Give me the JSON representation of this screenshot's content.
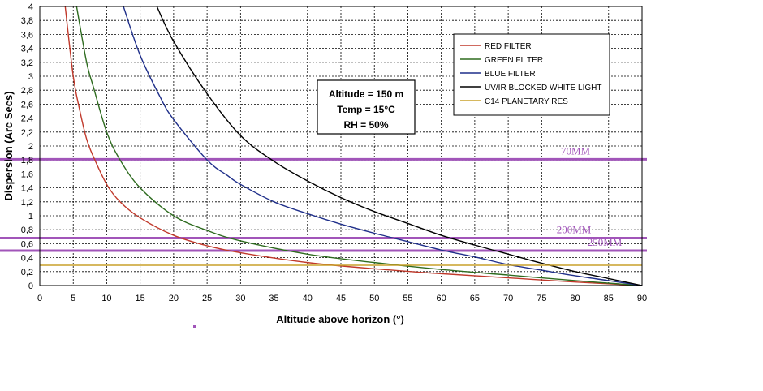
{
  "chart_data": {
    "type": "line",
    "xlabel": "Altitude above horizon (°)",
    "ylabel": "Dispersion (Arc Secs)",
    "xlim": [
      0,
      90
    ],
    "ylim": [
      0,
      4
    ],
    "x_ticks": [
      "0",
      "5",
      "10",
      "15",
      "20",
      "25",
      "30",
      "35",
      "40",
      "45",
      "50",
      "55",
      "60",
      "65",
      "70",
      "75",
      "80",
      "85",
      "90"
    ],
    "y_ticks": [
      "0",
      "0,2",
      "0,4",
      "0,6",
      "0,8",
      "1",
      "1,2",
      "1,4",
      "1,6",
      "1,8",
      "2",
      "2,2",
      "2,4",
      "2,6",
      "2,8",
      "3",
      "3,2",
      "3,4",
      "3,6",
      "3,8",
      "4"
    ],
    "grid": true,
    "legend_position": "top-right",
    "series": [
      {
        "name": "RED FILTER",
        "color": "#c0392b",
        "x": [
          3.8,
          5,
          6,
          7,
          8,
          10,
          12,
          15,
          20,
          25,
          30,
          40,
          50,
          60,
          70,
          80,
          90
        ],
        "y": [
          4.0,
          3.0,
          2.5,
          2.1,
          1.85,
          1.45,
          1.2,
          0.97,
          0.72,
          0.57,
          0.47,
          0.33,
          0.24,
          0.17,
          0.11,
          0.05,
          0.0
        ]
      },
      {
        "name": "GREEN FILTER",
        "color": "#2e6b1f",
        "x": [
          5.5,
          7,
          8,
          10,
          12,
          15,
          20,
          25,
          30,
          40,
          50,
          60,
          70,
          80,
          90
        ],
        "y": [
          4.0,
          3.2,
          2.85,
          2.2,
          1.8,
          1.4,
          1.0,
          0.79,
          0.64,
          0.45,
          0.33,
          0.23,
          0.15,
          0.07,
          0.0
        ]
      },
      {
        "name": "BLUE FILTER",
        "color": "#1f2f8a",
        "x": [
          12.5,
          15,
          18,
          20,
          25,
          28,
          30,
          35,
          40,
          45,
          50,
          55,
          60,
          65,
          70,
          75,
          80,
          85,
          90
        ],
        "y": [
          4.0,
          3.3,
          2.7,
          2.38,
          1.8,
          1.58,
          1.45,
          1.2,
          1.03,
          0.88,
          0.75,
          0.63,
          0.51,
          0.41,
          0.3,
          0.22,
          0.14,
          0.07,
          0.0
        ]
      },
      {
        "name": "UV/IR BLOCKED WHITE LIGHT",
        "color": "#000000",
        "x": [
          17.5,
          20,
          25,
          30,
          35,
          40,
          45,
          50,
          55,
          60,
          65,
          70,
          75,
          80,
          85,
          90
        ],
        "y": [
          4.0,
          3.5,
          2.75,
          2.15,
          1.78,
          1.5,
          1.26,
          1.06,
          0.89,
          0.72,
          0.58,
          0.45,
          0.32,
          0.2,
          0.1,
          0.0
        ]
      },
      {
        "name": "C14 PLANETARY RES",
        "color": "#c8a02a",
        "x": [
          0,
          90
        ],
        "y": [
          0.29,
          0.29
        ]
      }
    ],
    "horizontal_markers": [
      {
        "label": "70MM",
        "y": 1.81,
        "color": "#a155b9"
      },
      {
        "label": "200MM",
        "y": 0.68,
        "color": "#a155b9"
      },
      {
        "label": "250MM",
        "y": 0.5,
        "color": "#a155b9"
      }
    ],
    "annotation": {
      "lines": [
        "Altitude = 150 m",
        "Temp = 15°C",
        "RH = 50%"
      ]
    }
  }
}
